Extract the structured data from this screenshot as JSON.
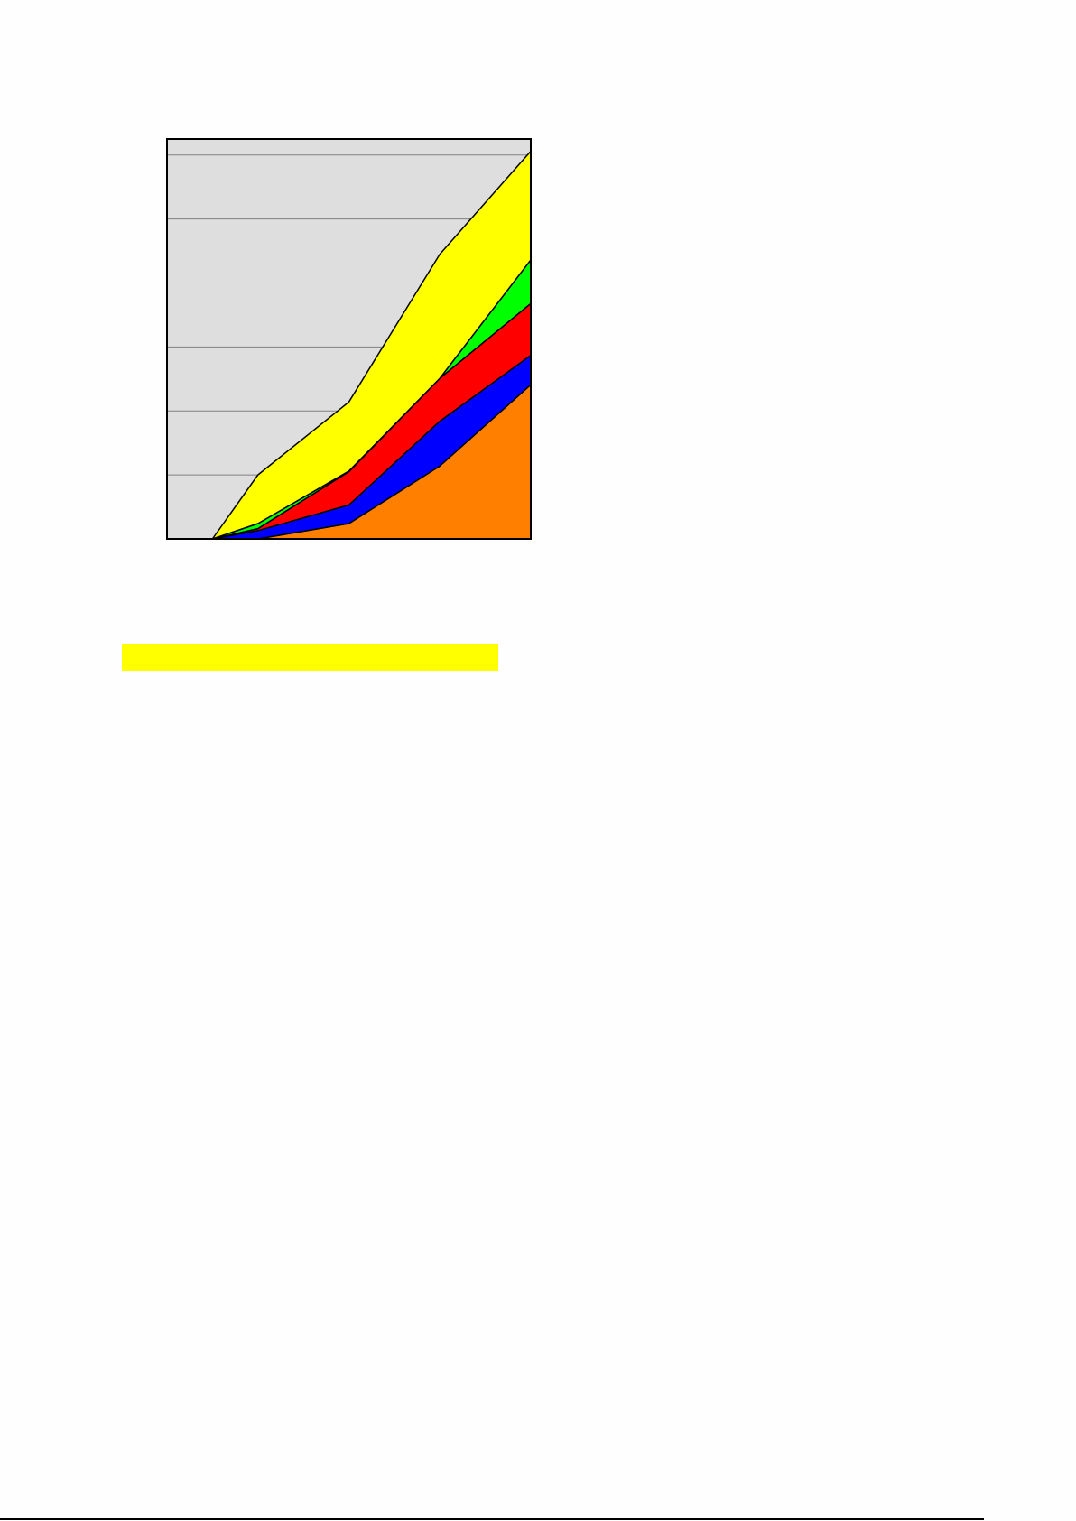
{
  "chart_data": {
    "type": "area",
    "stacked": true,
    "title": "",
    "xlabel": "",
    "ylabel": "",
    "x": [
      0.5,
      1,
      2,
      3,
      4
    ],
    "xlim": [
      0,
      4
    ],
    "ylim": [
      0,
      6.25
    ],
    "grid": {
      "horizontal": true,
      "vertical": false,
      "step": 1
    },
    "plot_background": "#dedede",
    "legend": "none",
    "series": [
      {
        "color": "#ff8000",
        "values": [
          0,
          0,
          0.24,
          1.14,
          2.41
        ]
      },
      {
        "color": "#0000ff",
        "values": [
          0,
          0.13,
          0.29,
          0.7,
          0.46
        ]
      },
      {
        "color": "#ff0000",
        "values": [
          0,
          0.03,
          0.52,
          0.67,
          0.81
        ]
      },
      {
        "color": "#00ff00",
        "values": [
          0,
          0.08,
          0.01,
          0.0,
          0.68
        ]
      },
      {
        "color": "#ffff00",
        "values": [
          0,
          0.76,
          1.08,
          1.94,
          1.7
        ]
      }
    ]
  },
  "highlight_color": "#ffff00"
}
